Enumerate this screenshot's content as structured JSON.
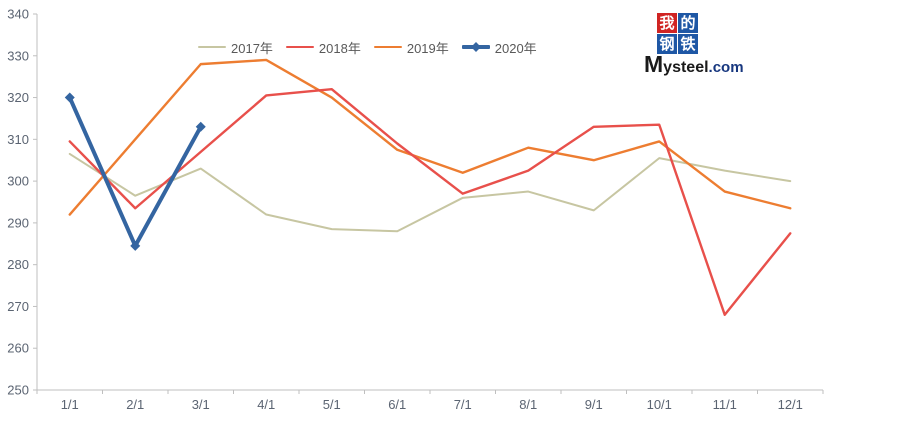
{
  "chart_data": {
    "type": "line",
    "x": [
      "1/1",
      "2/1",
      "3/1",
      "4/1",
      "5/1",
      "6/1",
      "7/1",
      "8/1",
      "9/1",
      "10/1",
      "11/1",
      "12/1"
    ],
    "series": [
      {
        "name": "2017年",
        "color": "#C7C6A2",
        "width": 2,
        "values": [
          306.5,
          296.5,
          303,
          292,
          288.5,
          288,
          296,
          297.5,
          293,
          305.5,
          302.5,
          300
        ]
      },
      {
        "name": "2018年",
        "color": "#E8504B",
        "width": 2.4,
        "values": [
          309.5,
          293.5,
          307,
          320.5,
          322,
          309,
          297,
          302.5,
          313,
          313.5,
          268,
          287.5
        ]
      },
      {
        "name": "2019年",
        "color": "#ED7D31",
        "width": 2.4,
        "values": [
          292,
          310,
          328,
          329,
          320,
          307.5,
          302,
          308,
          305,
          309.5,
          297.5,
          293.5
        ]
      },
      {
        "name": "2020年",
        "color": "#3465A1",
        "width": 4,
        "marker": "diamond",
        "values": [
          320,
          284.5,
          313
        ]
      }
    ],
    "ylim": [
      250,
      340
    ],
    "ytick_step": 10,
    "legend_position": "top",
    "grid": false
  },
  "axes": {
    "line_color": "#BFBFBF",
    "tick_color": "#BFBFBF",
    "label_color": "#5B6472"
  },
  "legend": {
    "text_color": "#595959"
  },
  "logo": {
    "grid_chars": [
      "我",
      "的",
      "钢",
      "铁"
    ],
    "char_bg_red": "#D02423",
    "char_bg_blue": "#1E57A5",
    "wordmark": "Mysteel",
    "wordmark_suffix": ".com",
    "wordmark_color": "#1A1A1A",
    "suffix_color": "#17377F"
  }
}
